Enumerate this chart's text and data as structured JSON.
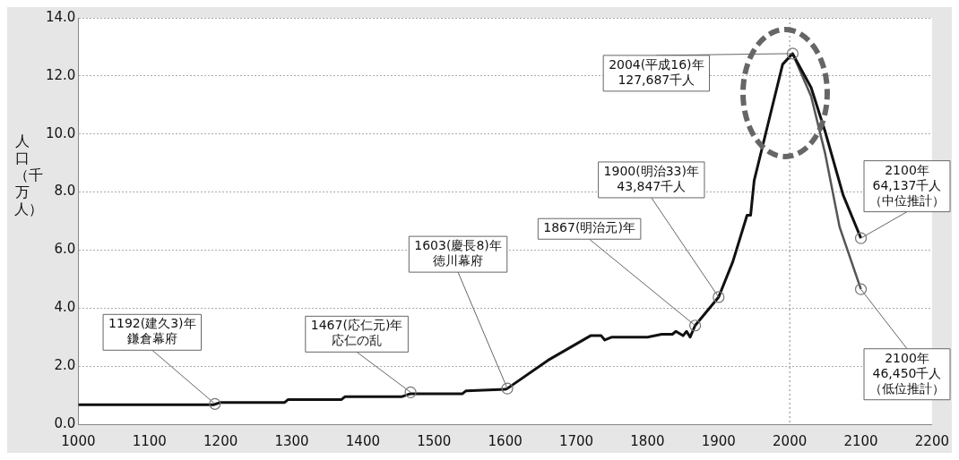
{
  "chart_data": {
    "type": "line",
    "ylabel": "人口（千万人）",
    "series": [
      {
        "color": "#111111",
        "x": [
          1000,
          1190,
          1200,
          1290,
          1295,
          1370,
          1375,
          1455,
          1467,
          1540,
          1545,
          1600,
          1603,
          1660,
          1720,
          1735,
          1740,
          1750,
          1760,
          1800,
          1820,
          1835,
          1840,
          1850,
          1855,
          1860,
          1867,
          1900,
          1920,
          1940,
          1945,
          1950,
          1970,
          1990,
          2004,
          2030,
          2050,
          2075,
          2100
        ],
        "values": [
          0.67,
          0.67,
          0.75,
          0.75,
          0.85,
          0.85,
          0.95,
          0.95,
          1.05,
          1.05,
          1.15,
          1.2,
          1.23,
          2.2,
          3.05,
          3.05,
          2.9,
          3.0,
          3.0,
          3.0,
          3.1,
          3.1,
          3.2,
          3.05,
          3.2,
          3.0,
          3.4,
          4.38,
          5.6,
          7.2,
          7.2,
          8.4,
          10.4,
          12.4,
          12.77,
          11.6,
          10.06,
          7.9,
          6.41
        ]
      },
      {
        "color": "#555555",
        "x": [
          2004,
          2030,
          2050,
          2070,
          2100
        ],
        "values": [
          12.77,
          11.3,
          9.3,
          6.8,
          4.65
        ]
      }
    ],
    "xlim": [
      1000,
      2200
    ],
    "xticks": [
      1000,
      1100,
      1200,
      1300,
      1400,
      1500,
      1600,
      1700,
      1800,
      1900,
      2000,
      2100,
      2200
    ],
    "ylim": [
      0,
      14
    ],
    "yticks": [
      {
        "value": 0,
        "label": "0.0"
      },
      {
        "value": 2,
        "label": "2.0"
      },
      {
        "value": 4,
        "label": "4.0"
      },
      {
        "value": 6,
        "label": "6.0"
      },
      {
        "value": 8,
        "label": "8.0"
      },
      {
        "value": 10,
        "label": "10.0"
      },
      {
        "value": 12,
        "label": "12.0"
      },
      {
        "value": 14,
        "label": "14.0"
      }
    ],
    "grid": "y",
    "ref_lines": [
      {
        "axis": "x",
        "value": 2000,
        "color": "#999999",
        "line_style": "dotted"
      }
    ],
    "annotations": [
      {
        "text": "1192(建久3)年鎌倉幕府",
        "x": 1192,
        "y": 0.7
      },
      {
        "text": "1467(応仁元)年応仁の乱",
        "x": 1467,
        "y": 1.1
      },
      {
        "text": "1603(慶長8)年徳川幕府",
        "x": 1603,
        "y": 1.23
      },
      {
        "text": "1867(明治元)年",
        "x": 1867,
        "y": 3.4
      },
      {
        "text": "1900(明治33)年\n43,847千人",
        "x": 1900,
        "y": 4.38
      },
      {
        "text": "2004(平成16)年\n127,687千人",
        "x": 2004,
        "y": 12.77
      },
      {
        "text": "2100年64,137千人（中位推計）",
        "x": 2100,
        "y": 6.41
      },
      {
        "text": "2100年46,450千人（低位推計）",
        "x": 2100,
        "y": 4.65
      }
    ]
  }
}
